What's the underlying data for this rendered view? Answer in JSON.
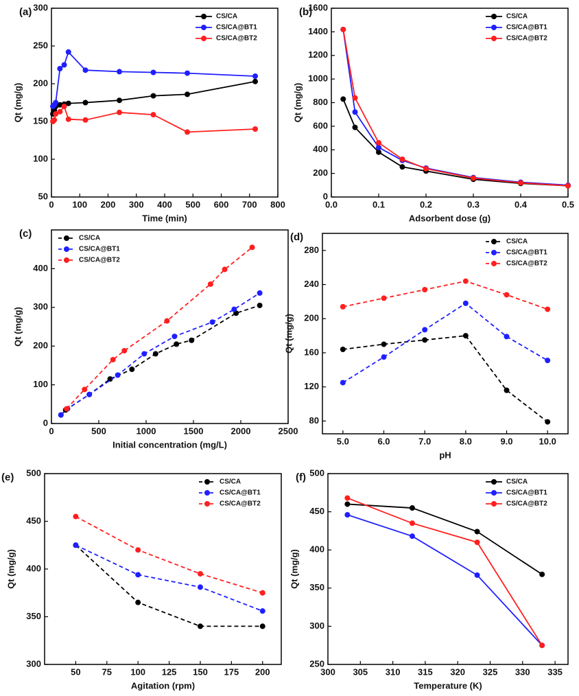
{
  "chart_data": [
    {
      "type": "line",
      "label": "(a)",
      "xlabel": "Time (min)",
      "ylabel": "Qt (mg/g)",
      "x": [
        5,
        10,
        15,
        30,
        45,
        60,
        120,
        240,
        360,
        480,
        720
      ],
      "series": [
        {
          "name": "CS/CA",
          "color": "#000000",
          "values": [
            160,
            165,
            170,
            172,
            173,
            174,
            175,
            178,
            184,
            186,
            203
          ]
        },
        {
          "name": "CS/CA@BT1",
          "color": "#1f1fff",
          "values": [
            170,
            172,
            175,
            220,
            225,
            242,
            218,
            216,
            215,
            214,
            210
          ]
        },
        {
          "name": "CS/CA@BT2",
          "color": "#ff1f1f",
          "values": [
            150,
            152,
            160,
            163,
            170,
            153,
            152,
            162,
            159,
            136,
            140
          ]
        }
      ],
      "xlim": [
        0,
        800
      ],
      "ylim": [
        50,
        300
      ],
      "xticks": [
        0,
        100,
        200,
        300,
        400,
        500,
        600,
        700,
        800
      ],
      "yticks": [
        50,
        100,
        150,
        200,
        250,
        300
      ],
      "dashed": false,
      "legend": "upper right"
    },
    {
      "type": "line",
      "label": "(b)",
      "xlabel": "Adsorbent dose (g)",
      "ylabel": "Qt (mg/g)",
      "x": [
        0.025,
        0.05,
        0.1,
        0.15,
        0.2,
        0.3,
        0.4,
        0.5
      ],
      "series": [
        {
          "name": "CS/CA",
          "color": "#000000",
          "values": [
            830,
            590,
            380,
            255,
            220,
            150,
            115,
            95
          ]
        },
        {
          "name": "CS/CA@BT1",
          "color": "#1f1fff",
          "values": [
            1420,
            720,
            420,
            310,
            245,
            165,
            125,
            100
          ]
        },
        {
          "name": "CS/CA@BT2",
          "color": "#ff1f1f",
          "values": [
            1420,
            840,
            460,
            320,
            240,
            160,
            120,
            95
          ]
        }
      ],
      "xlim": [
        0,
        0.5
      ],
      "ylim": [
        0,
        1600
      ],
      "xticks": [
        {
          "value": 0,
          "label": "0.0"
        },
        0.1,
        0.2,
        0.3,
        0.4,
        0.5
      ],
      "yticks": [
        0,
        200,
        400,
        600,
        800,
        1000,
        1200,
        1400,
        1600
      ],
      "dashed": false,
      "legend": "upper right"
    },
    {
      "type": "line",
      "label": "(c)",
      "xlabel": "Initial concentration (mg/L)",
      "ylabel": "Qt (mg/g)",
      "series": [
        {
          "name": "CS/CA",
          "color": "#000000",
          "x": [
            100,
            150,
            400,
            620,
            850,
            1100,
            1320,
            1480,
            1950,
            2200
          ],
          "values": [
            22,
            35,
            75,
            115,
            140,
            180,
            205,
            215,
            285,
            305
          ]
        },
        {
          "name": "CS/CA@BT1",
          "color": "#1f1fff",
          "x": [
            100,
            170,
            400,
            700,
            980,
            1300,
            1700,
            1930,
            2200
          ],
          "values": [
            22,
            38,
            75,
            125,
            180,
            225,
            262,
            295,
            337
          ]
        },
        {
          "name": "CS/CA@BT2",
          "color": "#ff1f1f",
          "x": [
            160,
            350,
            650,
            770,
            1220,
            1680,
            1830,
            2120
          ],
          "values": [
            38,
            88,
            165,
            188,
            265,
            360,
            398,
            455
          ]
        }
      ],
      "xlim": [
        0,
        2500
      ],
      "ylim": [
        0,
        500
      ],
      "xticks": [
        0,
        500,
        1000,
        1500,
        2000,
        2500
      ],
      "yticks": [
        0,
        100,
        200,
        300,
        400
      ],
      "dashed": true,
      "legend": "upper left"
    },
    {
      "type": "line",
      "label": "(d)",
      "xlabel": "pH",
      "ylabel": "Qt (mg/g)",
      "x": [
        5,
        6,
        7,
        8,
        9,
        10
      ],
      "series": [
        {
          "name": "CS/CA",
          "color": "#000000",
          "values": [
            164,
            170,
            175,
            180,
            116,
            79
          ]
        },
        {
          "name": "CS/CA@BT1",
          "color": "#1f1fff",
          "values": [
            125,
            155,
            187,
            218,
            179,
            151
          ]
        },
        {
          "name": "CS/CA@BT2",
          "color": "#ff1f1f",
          "values": [
            214,
            224,
            234,
            244,
            228,
            211
          ]
        }
      ],
      "xlim": [
        4.5,
        10.5
      ],
      "ylim": [
        65,
        300
      ],
      "xticks": [
        {
          "value": 5,
          "label": "5.0"
        },
        {
          "value": 6,
          "label": "6.0"
        },
        {
          "value": 7,
          "label": "7.0"
        },
        {
          "value": 8,
          "label": "8.0"
        },
        {
          "value": 9,
          "label": "9.0"
        },
        {
          "value": 10,
          "label": "10.0"
        }
      ],
      "yticks": [
        80,
        120,
        160,
        200,
        240,
        280
      ],
      "dashed": true,
      "legend": "upper right"
    },
    {
      "type": "line",
      "label": "(e)",
      "xlabel": "Agitation (rpm)",
      "ylabel": "Qt (mg/g)",
      "x": [
        50,
        100,
        150,
        200
      ],
      "series": [
        {
          "name": "CS/CA",
          "color": "#000000",
          "values": [
            425,
            365,
            340,
            340
          ]
        },
        {
          "name": "CS/CA@BT1",
          "color": "#1f1fff",
          "values": [
            425,
            394,
            381,
            356
          ]
        },
        {
          "name": "CS/CA@BT2",
          "color": "#ff1f1f",
          "values": [
            455,
            420,
            395,
            375
          ]
        }
      ],
      "xlim": [
        25,
        215
      ],
      "ylim": [
        300,
        500
      ],
      "xticks": [
        50,
        75,
        100,
        125,
        150,
        175,
        200
      ],
      "yticks": [
        300,
        350,
        400,
        450,
        500
      ],
      "dashed": true,
      "legend": "upper right"
    },
    {
      "type": "line",
      "label": "(f)",
      "xlabel": "Temperature (K)",
      "ylabel": "Qt (mg/g)",
      "x": [
        303,
        313,
        323,
        333
      ],
      "series": [
        {
          "name": "CS/CA",
          "color": "#000000",
          "values": [
            460,
            455,
            424,
            368
          ]
        },
        {
          "name": "CS/CA@BT1",
          "color": "#1f1fff",
          "values": [
            446,
            418,
            367,
            275
          ]
        },
        {
          "name": "CS/CA@BT2",
          "color": "#ff1f1f",
          "values": [
            468,
            435,
            410,
            275
          ]
        }
      ],
      "xlim": [
        300,
        337
      ],
      "ylim": [
        250,
        500
      ],
      "xticks": [
        300,
        305,
        310,
        315,
        320,
        325,
        330,
        335
      ],
      "yticks": [
        250,
        300,
        350,
        400,
        450,
        500
      ],
      "dashed": false,
      "legend": "upper right"
    }
  ]
}
